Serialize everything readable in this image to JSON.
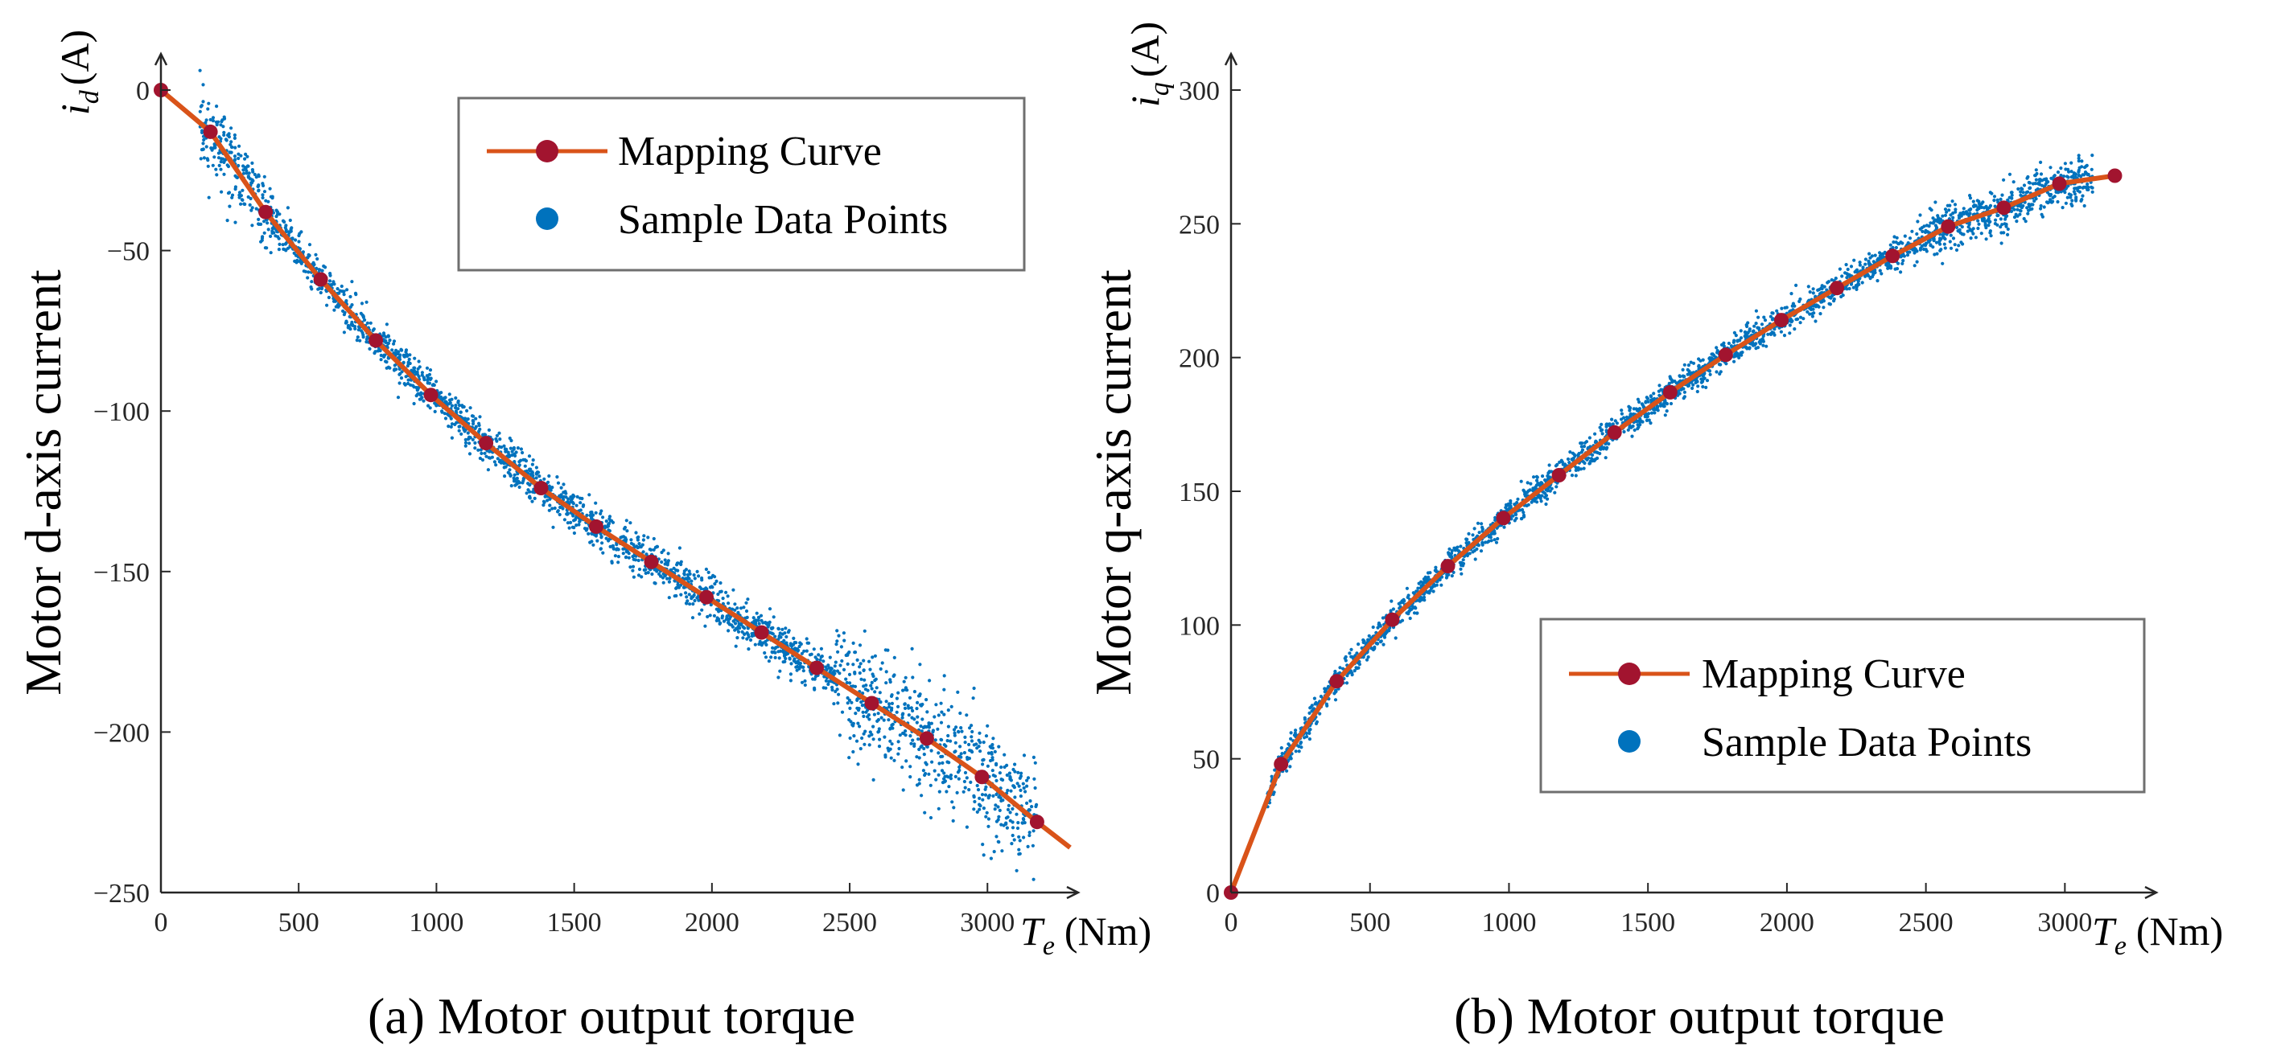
{
  "colors": {
    "curve": "#d95319",
    "marker": "#a2142f",
    "points": "#0072bd",
    "legend_border": "#6f6f6f",
    "axis": "#262626"
  },
  "chart_data": [
    {
      "type": "line",
      "caption": "(a) Motor output torque",
      "ylabel_main": "Motor d-axis current",
      "ylabel_sym": "i",
      "ylabel_sub": "d",
      "ylabel_unit": "(A)",
      "xlabel_sym": "T",
      "xlabel_sub": "e",
      "xlabel_unit": "(Nm)",
      "xlim": [
        0,
        3300
      ],
      "ylim": [
        -250,
        0
      ],
      "xticks": [
        0,
        500,
        1000,
        1500,
        2000,
        2500,
        3000
      ],
      "yticks": [
        0,
        -50,
        -100,
        -150,
        -200,
        -250
      ],
      "tick_labels_x": [
        "0",
        "500",
        "1000",
        "1500",
        "2000",
        "2500",
        "3000"
      ],
      "tick_labels_y": [
        "0",
        "−50",
        "−100",
        "−150",
        "−200",
        "−250"
      ],
      "legend": {
        "position": "top-right",
        "entries": [
          "Mapping Curve",
          "Sample Data Points"
        ]
      },
      "series": [
        {
          "name": "Mapping Curve",
          "x": [
            0,
            180,
            380,
            580,
            780,
            980,
            1180,
            1380,
            1580,
            1780,
            1980,
            2180,
            2380,
            2580,
            2780,
            2980,
            3180
          ],
          "y": [
            0,
            -13,
            -38,
            -59,
            -78,
            -95,
            -110,
            -124,
            -136,
            -147,
            -158,
            -169,
            -180,
            -191,
            -202,
            -214,
            -228
          ],
          "line_end": [
            3300,
            -236
          ]
        },
        {
          "name": "Sample Data Points",
          "band": {
            "x_range": [
              140,
              3180
            ],
            "description_points": [
              [
                140,
                -2
              ],
              [
                300,
                -28
              ],
              [
                600,
                -60
              ],
              [
                1000,
                -96
              ],
              [
                1500,
                -130
              ],
              [
                2000,
                -158
              ],
              [
                2500,
                -186
              ],
              [
                2800,
                -202
              ],
              [
                3100,
                -222
              ]
            ]
          }
        }
      ]
    },
    {
      "type": "line",
      "caption": "(b) Motor output torque",
      "ylabel_main": "Motor q-axis current",
      "ylabel_sym": "i",
      "ylabel_sub": "q",
      "ylabel_unit": "(A)",
      "xlabel_sym": "T",
      "xlabel_sub": "e",
      "xlabel_unit": "(Nm)",
      "xlim": [
        0,
        3300
      ],
      "ylim": [
        0,
        300
      ],
      "xticks": [
        0,
        500,
        1000,
        1500,
        2000,
        2500,
        3000
      ],
      "yticks": [
        0,
        50,
        100,
        150,
        200,
        250,
        300
      ],
      "tick_labels_x": [
        "0",
        "500",
        "1000",
        "1500",
        "2000",
        "2500",
        "3000"
      ],
      "tick_labels_y": [
        "0",
        "50",
        "100",
        "150",
        "200",
        "250",
        "300"
      ],
      "legend": {
        "position": "bottom-right",
        "entries": [
          "Mapping Curve",
          "Sample Data Points"
        ]
      },
      "series": [
        {
          "name": "Mapping Curve",
          "x": [
            0,
            180,
            380,
            580,
            780,
            980,
            1180,
            1380,
            1580,
            1780,
            1980,
            2180,
            2380,
            2580,
            2780,
            2980,
            3180
          ],
          "y": [
            0,
            48,
            79,
            102,
            122,
            140,
            156,
            172,
            187,
            201,
            214,
            226,
            238,
            249,
            256,
            265,
            268
          ]
        },
        {
          "name": "Sample Data Points",
          "band": {
            "x_range": [
              130,
              3100
            ],
            "description_points": [
              [
                130,
                40
              ],
              [
                500,
                92
              ],
              [
                1000,
                140
              ],
              [
                1500,
                182
              ],
              [
                2000,
                215
              ],
              [
                2500,
                245
              ],
              [
                2800,
                257
              ],
              [
                3100,
                266
              ]
            ]
          }
        }
      ]
    }
  ]
}
